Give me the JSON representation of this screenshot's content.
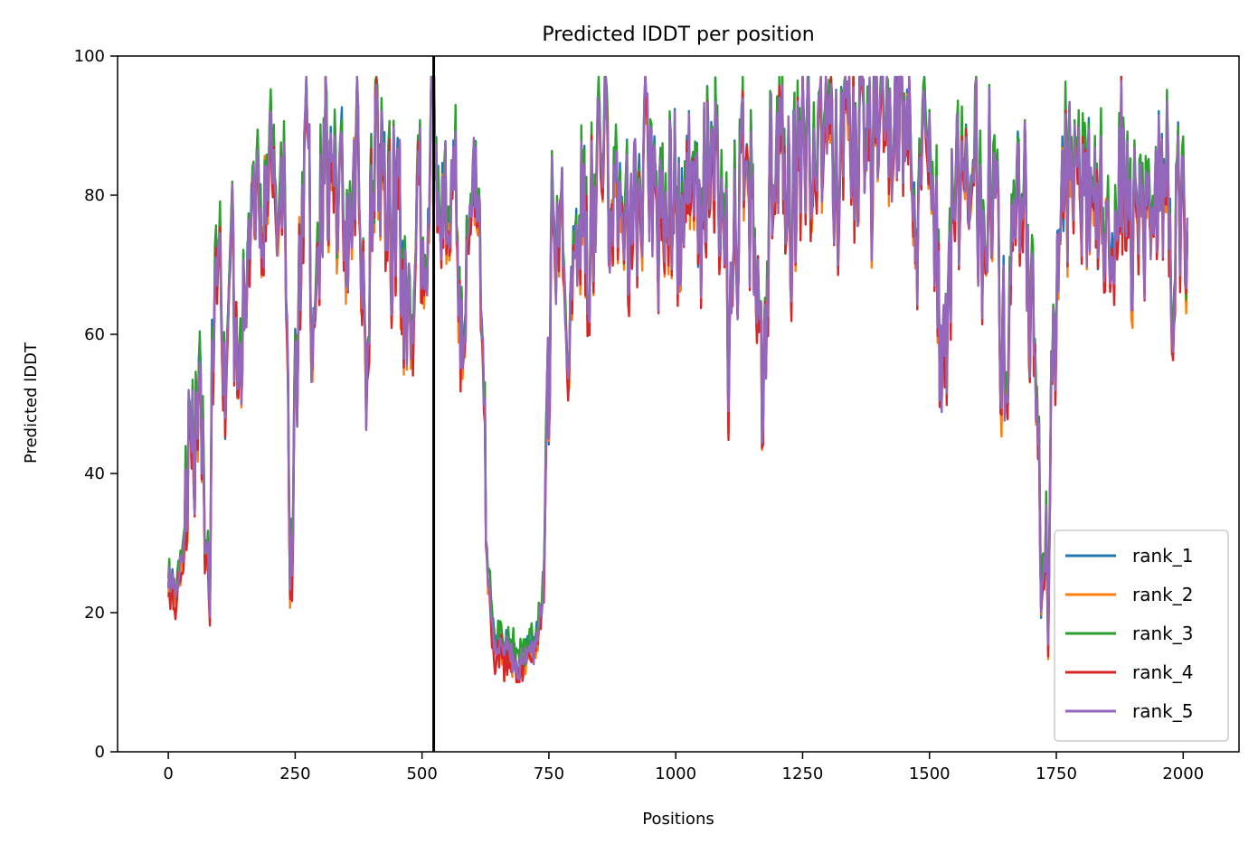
{
  "chart_data": {
    "type": "line",
    "title": "Predicted lDDT per position",
    "xlabel": "Positions",
    "ylabel": "Predicted lDDT",
    "xlim": [
      -100,
      2110
    ],
    "ylim": [
      0,
      100
    ],
    "xticks": [
      0,
      250,
      500,
      750,
      1000,
      1250,
      1500,
      1750,
      2000
    ],
    "yticks": [
      0,
      20,
      40,
      60,
      80,
      100
    ],
    "grid": false,
    "legend_position": "lower right",
    "vline_x": 523,
    "anchors": [
      [
        0,
        24
      ],
      [
        15,
        22
      ],
      [
        30,
        28
      ],
      [
        45,
        40
      ],
      [
        60,
        50
      ],
      [
        70,
        30
      ],
      [
        80,
        26
      ],
      [
        95,
        78
      ],
      [
        110,
        52
      ],
      [
        125,
        72
      ],
      [
        140,
        58
      ],
      [
        160,
        76
      ],
      [
        180,
        74
      ],
      [
        200,
        82
      ],
      [
        215,
        70
      ],
      [
        230,
        83
      ],
      [
        240,
        30
      ],
      [
        255,
        60
      ],
      [
        270,
        88
      ],
      [
        290,
        60
      ],
      [
        310,
        88
      ],
      [
        330,
        80
      ],
      [
        350,
        72
      ],
      [
        370,
        88
      ],
      [
        390,
        62
      ],
      [
        410,
        86
      ],
      [
        430,
        70
      ],
      [
        450,
        84
      ],
      [
        470,
        56
      ],
      [
        490,
        86
      ],
      [
        505,
        62
      ],
      [
        520,
        88
      ],
      [
        535,
        74
      ],
      [
        550,
        84
      ],
      [
        570,
        78
      ],
      [
        585,
        52
      ],
      [
        600,
        85
      ],
      [
        615,
        70
      ],
      [
        625,
        30
      ],
      [
        640,
        17
      ],
      [
        660,
        14
      ],
      [
        680,
        13
      ],
      [
        700,
        14
      ],
      [
        720,
        15
      ],
      [
        740,
        22
      ],
      [
        755,
        70
      ],
      [
        770,
        88
      ],
      [
        790,
        58
      ],
      [
        810,
        84
      ],
      [
        830,
        74
      ],
      [
        850,
        88
      ],
      [
        870,
        78
      ],
      [
        890,
        86
      ],
      [
        910,
        72
      ],
      [
        930,
        86
      ],
      [
        950,
        82
      ],
      [
        970,
        76
      ],
      [
        990,
        80
      ],
      [
        1010,
        70
      ],
      [
        1030,
        84
      ],
      [
        1050,
        74
      ],
      [
        1070,
        88
      ],
      [
        1090,
        78
      ],
      [
        1110,
        60
      ],
      [
        1130,
        86
      ],
      [
        1150,
        78
      ],
      [
        1170,
        50
      ],
      [
        1190,
        84
      ],
      [
        1210,
        88
      ],
      [
        1230,
        80
      ],
      [
        1250,
        92
      ],
      [
        1270,
        84
      ],
      [
        1290,
        90
      ],
      [
        1310,
        82
      ],
      [
        1330,
        92
      ],
      [
        1350,
        86
      ],
      [
        1370,
        90
      ],
      [
        1390,
        88
      ],
      [
        1410,
        94
      ],
      [
        1430,
        86
      ],
      [
        1450,
        90
      ],
      [
        1470,
        80
      ],
      [
        1490,
        84
      ],
      [
        1510,
        76
      ],
      [
        1530,
        48
      ],
      [
        1550,
        84
      ],
      [
        1570,
        78
      ],
      [
        1590,
        86
      ],
      [
        1610,
        72
      ],
      [
        1630,
        84
      ],
      [
        1650,
        50
      ],
      [
        1670,
        82
      ],
      [
        1690,
        78
      ],
      [
        1710,
        60
      ],
      [
        1720,
        22
      ],
      [
        1735,
        35
      ],
      [
        1750,
        62
      ],
      [
        1765,
        86
      ],
      [
        1790,
        80
      ],
      [
        1820,
        84
      ],
      [
        1850,
        76
      ],
      [
        1880,
        86
      ],
      [
        1900,
        74
      ],
      [
        1920,
        84
      ],
      [
        1940,
        72
      ],
      [
        1960,
        84
      ],
      [
        1980,
        70
      ],
      [
        1995,
        78
      ],
      [
        2008,
        66
      ]
    ],
    "series": [
      {
        "label": "rank_1",
        "color": "#1f77b4",
        "seed": 11,
        "offset": 0.6
      },
      {
        "label": "rank_2",
        "color": "#ff7f0e",
        "seed": 23,
        "offset": -0.8
      },
      {
        "label": "rank_3",
        "color": "#2ca02c",
        "seed": 37,
        "offset": 1.5
      },
      {
        "label": "rank_4",
        "color": "#d62728",
        "seed": 53,
        "offset": -1.2
      },
      {
        "label": "rank_5",
        "color": "#9467bd",
        "seed": 71,
        "offset": 0.0
      }
    ]
  }
}
